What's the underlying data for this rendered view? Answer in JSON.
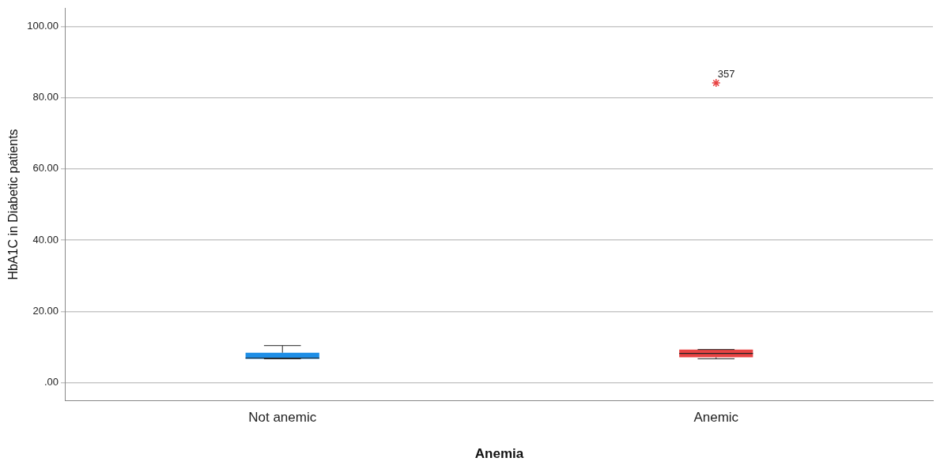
{
  "chart_data": {
    "type": "box",
    "xlabel": "Anemia",
    "ylabel": "HbA1C in Diabetic patients",
    "categories": [
      "Not anemic",
      "Anemic"
    ],
    "colors": [
      "#1e8ee6",
      "#e84444"
    ],
    "boxes": [
      {
        "low": 6.7,
        "q1": 6.7,
        "median": 6.9,
        "q3": 8.4,
        "high": 10.4
      },
      {
        "low": 6.7,
        "q1": 7.1,
        "median": 8.2,
        "q3": 9.3,
        "high": 9.3,
        "outliers": [
          84.1
        ]
      }
    ],
    "marker": "star",
    "ylim": [
      -5,
      105
    ],
    "yticks": [
      {
        "value": 0,
        "label": ".00"
      },
      {
        "value": 20,
        "label": "20.00"
      },
      {
        "value": 40,
        "label": "40.00"
      },
      {
        "value": 60,
        "label": "60.00"
      },
      {
        "value": 80,
        "label": "80.00"
      },
      {
        "value": 100,
        "label": "100.00"
      }
    ],
    "grid": "y",
    "legend": false,
    "annotations": [
      "357"
    ]
  }
}
